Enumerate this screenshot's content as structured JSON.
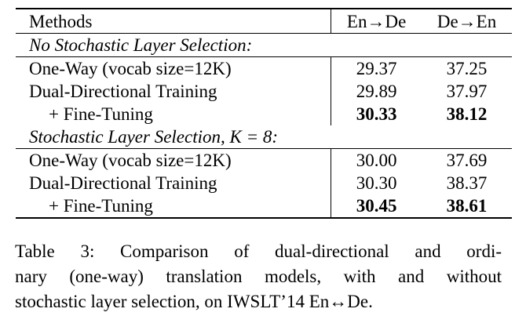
{
  "table": {
    "headers": {
      "methods": "Methods",
      "en_de": "En→De",
      "de_en": "De→En"
    },
    "sections": [
      {
        "title": "No Stochastic Layer Selection:",
        "rows": [
          {
            "method": "One-Way (vocab size=12K)",
            "en_de": "29.37",
            "de_en": "37.25",
            "bold": false
          },
          {
            "method": "Dual-Directional Training",
            "en_de": "29.89",
            "de_en": "37.97",
            "bold": false
          },
          {
            "method": "+ Fine-Tuning",
            "en_de": "30.33",
            "de_en": "38.12",
            "bold": true
          }
        ]
      },
      {
        "title": "Stochastic Layer Selection, K = 8:",
        "rows": [
          {
            "method": "One-Way (vocab size=12K)",
            "en_de": "30.00",
            "de_en": "37.69",
            "bold": false
          },
          {
            "method": "Dual-Directional Training",
            "en_de": "30.30",
            "de_en": "38.37",
            "bold": false
          },
          {
            "method": "+ Fine-Tuning",
            "en_de": "30.45",
            "de_en": "38.61",
            "bold": true
          }
        ]
      }
    ]
  },
  "caption": {
    "lines": [
      "Table 3:  Comparison of dual-directional and ordi-",
      "nary (one-way) translation models, with and without",
      "stochastic layer selection, on IWSLT’14 En↔De."
    ]
  }
}
